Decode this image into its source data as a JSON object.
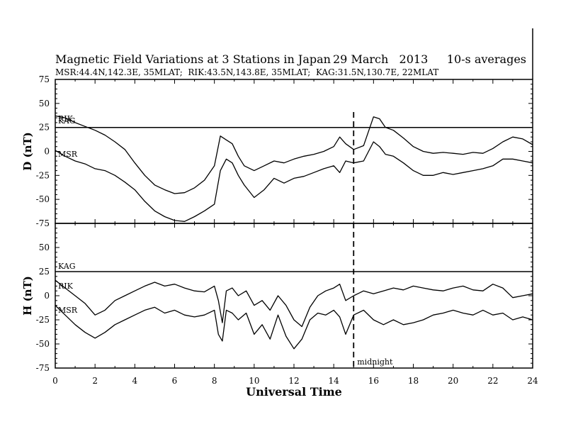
{
  "chart_data": {
    "type": "line",
    "title": "Magnetic Field Variations at 3 Stations in Japan",
    "date": "29 March   2013",
    "averaging": "10-s averages",
    "subtitle": "MSR:44.4N,142.3E, 35MLAT;  RIK:43.5N,143.8E, 35MLAT;  KAG:31.5N,130.7E, 22MLAT",
    "xlabel": "Universal Time",
    "xlim": [
      0,
      24
    ],
    "xticks": [
      "0",
      "2",
      "4",
      "6",
      "8",
      "10",
      "12",
      "14",
      "16",
      "18",
      "20",
      "22",
      "24"
    ],
    "midnight_marker": {
      "x": 15,
      "label": "midnight"
    },
    "panels": [
      {
        "ylabel": "D (nT)",
        "ylim": [
          -75,
          75
        ],
        "yticks": [
          "75",
          "50",
          "25",
          "0",
          "-25",
          "-50",
          "-75"
        ],
        "baseline": 25,
        "series": [
          {
            "name": "KAG",
            "x": [
              0,
              24
            ],
            "y": [
              25,
              25
            ]
          },
          {
            "name": "RIK",
            "x": [
              0,
              0.5,
              1,
              1.5,
              2,
              2.5,
              3,
              3.5,
              4,
              4.5,
              5,
              5.5,
              6,
              6.5,
              7,
              7.5,
              8,
              8.3,
              8.6,
              8.9,
              9.2,
              9.5,
              10,
              10.5,
              11,
              11.5,
              12,
              12.5,
              13,
              13.5,
              14,
              14.3,
              14.6,
              15,
              15.5,
              16,
              16.3,
              16.6,
              17,
              17.5,
              18,
              18.5,
              19,
              19.5,
              20,
              20.5,
              21,
              21.5,
              22,
              22.5,
              23,
              23.5,
              24
            ],
            "y": [
              37,
              35,
              30,
              26,
              22,
              17,
              10,
              2,
              -12,
              -25,
              -35,
              -40,
              -44,
              -43,
              -38,
              -30,
              -15,
              16,
              12,
              8,
              -5,
              -15,
              -20,
              -15,
              -10,
              -12,
              -8,
              -5,
              -3,
              0,
              5,
              15,
              8,
              2,
              6,
              36,
              34,
              25,
              22,
              14,
              5,
              0,
              -2,
              -1,
              -2,
              -3,
              -1,
              -2,
              3,
              10,
              15,
              13,
              7
            ]
          },
          {
            "name": "MSR",
            "x": [
              0,
              0.5,
              1,
              1.5,
              2,
              2.5,
              3,
              3.5,
              4,
              4.5,
              5,
              5.5,
              6,
              6.5,
              7,
              7.5,
              8,
              8.3,
              8.6,
              8.9,
              9.2,
              9.5,
              10,
              10.5,
              11,
              11.5,
              12,
              12.5,
              13,
              13.5,
              14,
              14.3,
              14.6,
              15,
              15.5,
              16,
              16.3,
              16.6,
              17,
              17.5,
              18,
              18.5,
              19,
              19.5,
              20,
              20.5,
              21,
              21.5,
              22,
              22.5,
              23,
              23.5,
              24
            ],
            "y": [
              1,
              -5,
              -10,
              -13,
              -18,
              -20,
              -25,
              -32,
              -40,
              -52,
              -62,
              -68,
              -72,
              -73,
              -68,
              -62,
              -55,
              -20,
              -8,
              -12,
              -25,
              -35,
              -48,
              -40,
              -28,
              -33,
              -28,
              -26,
              -22,
              -18,
              -15,
              -22,
              -10,
              -12,
              -10,
              10,
              5,
              -3,
              -5,
              -12,
              -20,
              -25,
              -25,
              -22,
              -24,
              -22,
              -20,
              -18,
              -15,
              -8,
              -8,
              -10,
              -12
            ]
          }
        ]
      },
      {
        "ylabel": "H (nT)",
        "ylim": [
          -75,
          75
        ],
        "yticks": [
          "75",
          "50",
          "25",
          "0",
          "-25",
          "-50",
          "-75"
        ],
        "baseline": 25,
        "series": [
          {
            "name": "KAG",
            "x": [
              0,
              24
            ],
            "y": [
              25,
              25
            ]
          },
          {
            "name": "RIK",
            "x": [
              0,
              0.5,
              1,
              1.5,
              2,
              2.5,
              3,
              3.5,
              4,
              4.5,
              5,
              5.5,
              6,
              6.5,
              7,
              7.5,
              8,
              8.2,
              8.4,
              8.6,
              8.9,
              9.2,
              9.6,
              10,
              10.4,
              10.8,
              11.2,
              11.6,
              12,
              12.4,
              12.8,
              13.2,
              13.6,
              14,
              14.3,
              14.6,
              15,
              15.5,
              16,
              16.5,
              17,
              17.5,
              18,
              18.5,
              19,
              19.5,
              20,
              20.5,
              21,
              21.5,
              22,
              22.5,
              23,
              23.5,
              24
            ],
            "y": [
              16,
              8,
              0,
              -8,
              -20,
              -15,
              -5,
              0,
              5,
              10,
              14,
              10,
              12,
              8,
              5,
              4,
              10,
              -5,
              -28,
              5,
              8,
              0,
              5,
              -10,
              -5,
              -15,
              0,
              -10,
              -25,
              -32,
              -12,
              0,
              5,
              8,
              12,
              -5,
              0,
              5,
              2,
              5,
              8,
              6,
              10,
              8,
              6,
              5,
              8,
              10,
              6,
              5,
              12,
              8,
              -2,
              0,
              2
            ]
          },
          {
            "name": "MSR",
            "x": [
              0,
              0.5,
              1,
              1.5,
              2,
              2.5,
              3,
              3.5,
              4,
              4.5,
              5,
              5.5,
              6,
              6.5,
              7,
              7.5,
              8,
              8.2,
              8.4,
              8.6,
              8.9,
              9.2,
              9.6,
              10,
              10.4,
              10.8,
              11.2,
              11.6,
              12,
              12.4,
              12.8,
              13.2,
              13.6,
              14,
              14.3,
              14.6,
              15,
              15.5,
              16,
              16.5,
              17,
              17.5,
              18,
              18.5,
              19,
              19.5,
              20,
              20.5,
              21,
              21.5,
              22,
              22.5,
              23,
              23.5,
              24
            ],
            "y": [
              -10,
              -20,
              -30,
              -38,
              -44,
              -38,
              -30,
              -25,
              -20,
              -15,
              -12,
              -18,
              -15,
              -20,
              -22,
              -20,
              -15,
              -40,
              -47,
              -15,
              -18,
              -25,
              -18,
              -40,
              -30,
              -45,
              -20,
              -42,
              -55,
              -45,
              -25,
              -18,
              -20,
              -15,
              -22,
              -40,
              -20,
              -15,
              -25,
              -30,
              -25,
              -30,
              -28,
              -25,
              -20,
              -18,
              -15,
              -18,
              -20,
              -15,
              -20,
              -18,
              -25,
              -22,
              -25
            ]
          }
        ]
      }
    ]
  }
}
